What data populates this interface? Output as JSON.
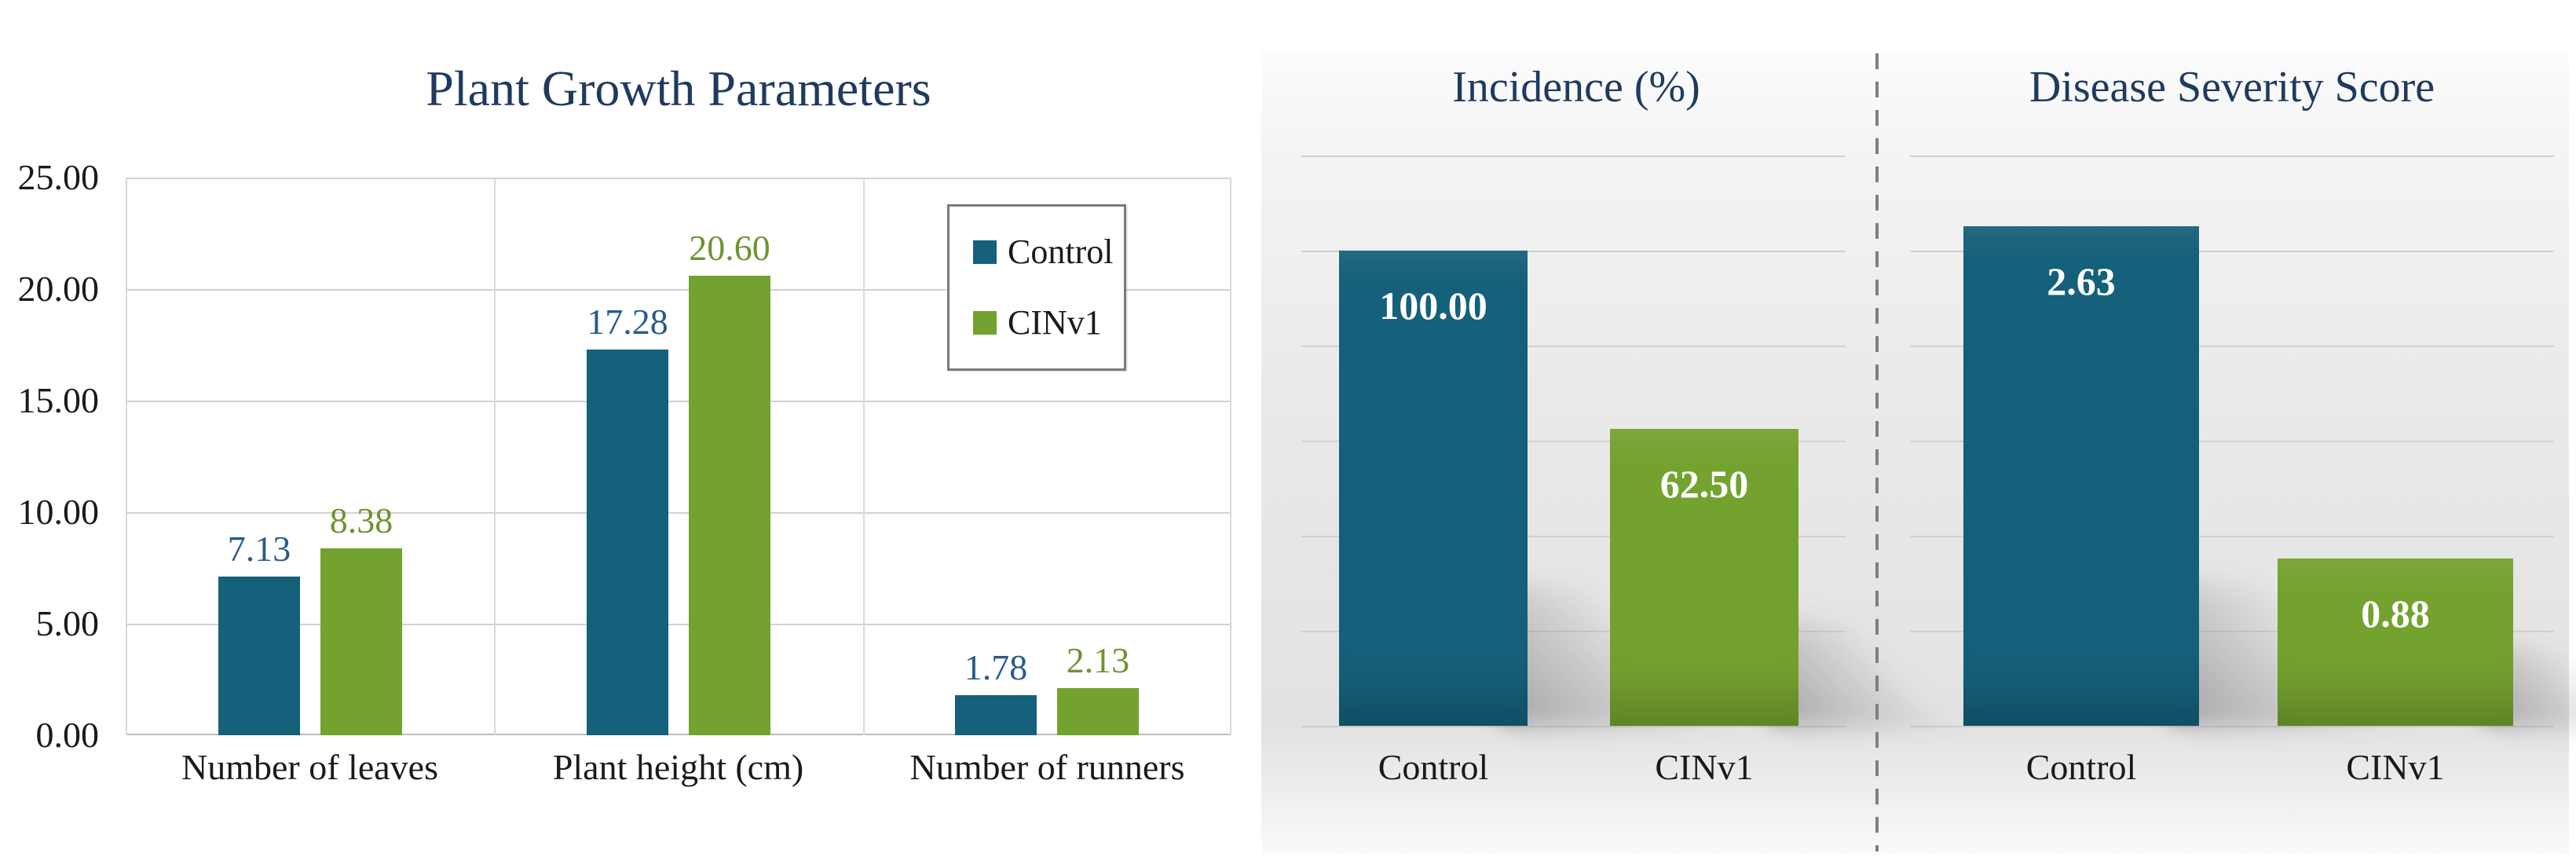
{
  "figure": {
    "background": "#ffffff",
    "accent_navy": "#1f3a5e",
    "series_colors": {
      "control": "#15607a",
      "cinv1": "#74a22f"
    }
  },
  "chart_data": [
    {
      "type": "bar",
      "title": "Plant Growth Parameters",
      "categories": [
        "Number of leaves",
        "Plant height (cm)",
        "Number of runners"
      ],
      "series": [
        {
          "name": "Control",
          "values": [
            7.13,
            17.28,
            1.78
          ],
          "labels": [
            "7.13",
            "17.28",
            "1.78"
          ],
          "color": "#15607a",
          "label_color": "#2a5b8a"
        },
        {
          "name": "CINv1",
          "values": [
            8.38,
            20.6,
            2.13
          ],
          "labels": [
            "8.38",
            "20.60",
            "2.13"
          ],
          "color": "#74a22f",
          "label_color": "#6f9330"
        }
      ],
      "ylim": [
        0,
        25
      ],
      "y_ticks": [
        "25.00",
        "20.00",
        "15.00",
        "10.00",
        "5.00",
        "0.00"
      ],
      "grid": true,
      "legend": {
        "entries": [
          "Control",
          "CINv1"
        ],
        "position": "inside-right"
      }
    },
    {
      "type": "bar",
      "title": "Incidence (%)",
      "categories": [
        "Control",
        "CINv1"
      ],
      "values": [
        100.0,
        62.5
      ],
      "value_labels": [
        "100.00",
        "62.50"
      ],
      "colors": [
        "#15607a",
        "#74a22f"
      ],
      "ylim": [
        0,
        120
      ],
      "grid_step": 20,
      "grid": true,
      "legend_position": "none"
    },
    {
      "type": "bar",
      "title": "Disease Severity Score",
      "categories": [
        "Control",
        "CINv1"
      ],
      "values": [
        2.63,
        0.88
      ],
      "value_labels": [
        "2.63",
        "0.88"
      ],
      "colors": [
        "#15607a",
        "#74a22f"
      ],
      "ylim": [
        0,
        3
      ],
      "grid_step": 0.5,
      "grid": true,
      "legend_position": "none"
    }
  ]
}
